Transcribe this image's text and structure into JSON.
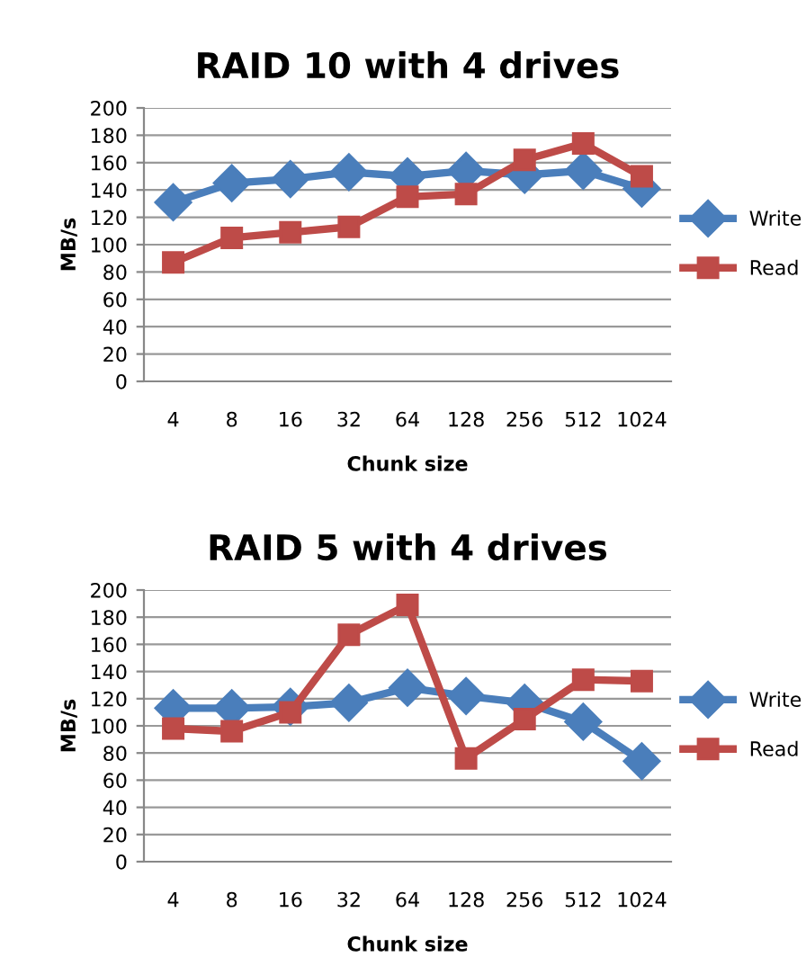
{
  "chart_data": [
    {
      "type": "line",
      "title": "RAID 10 with 4 drives",
      "xlabel": "Chunk size",
      "ylabel": "MB/s",
      "categories": [
        "4",
        "8",
        "16",
        "32",
        "64",
        "128",
        "256",
        "512",
        "1024"
      ],
      "ylim": [
        0,
        200
      ],
      "yticks": [
        0,
        20,
        40,
        60,
        80,
        100,
        120,
        140,
        160,
        180,
        200
      ],
      "grid": "y",
      "legend": "right",
      "series": [
        {
          "name": "Write",
          "color": "#4a7ebb",
          "marker": "diamond",
          "values": [
            131,
            145,
            148,
            153,
            150,
            154,
            151,
            154,
            141
          ]
        },
        {
          "name": "Read",
          "color": "#be4b48",
          "marker": "square",
          "values": [
            87,
            105,
            109,
            113,
            135,
            137,
            162,
            174,
            150
          ]
        }
      ]
    },
    {
      "type": "line",
      "title": "RAID 5 with 4 drives",
      "xlabel": "Chunk size",
      "ylabel": "MB/s",
      "categories": [
        "4",
        "8",
        "16",
        "32",
        "64",
        "128",
        "256",
        "512",
        "1024"
      ],
      "ylim": [
        0,
        200
      ],
      "yticks": [
        0,
        20,
        40,
        60,
        80,
        100,
        120,
        140,
        160,
        180,
        200
      ],
      "grid": "y",
      "legend": "right",
      "series": [
        {
          "name": "Write",
          "color": "#4a7ebb",
          "marker": "diamond",
          "values": [
            113,
            113,
            114,
            117,
            128,
            122,
            117,
            103,
            74
          ]
        },
        {
          "name": "Read",
          "color": "#be4b48",
          "marker": "square",
          "values": [
            98,
            96,
            110,
            167,
            189,
            76,
            105,
            134,
            133
          ]
        }
      ]
    }
  ]
}
